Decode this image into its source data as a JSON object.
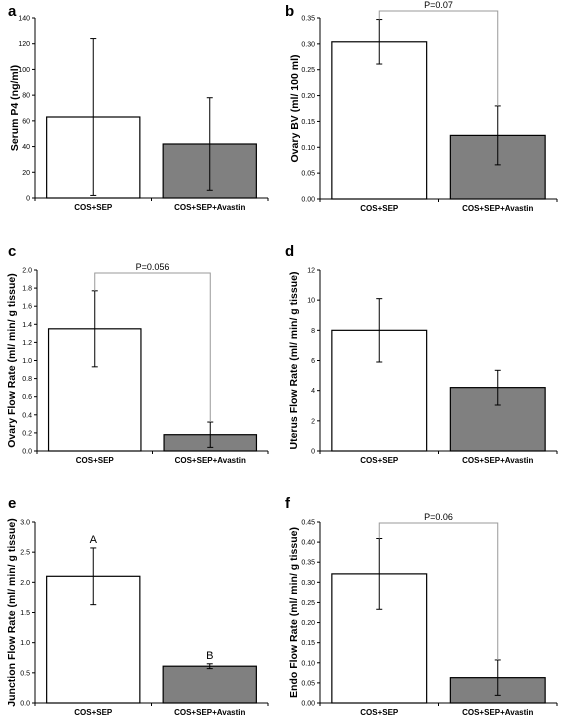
{
  "chart_data": [
    {
      "type": "bar",
      "panel": "a",
      "categories": [
        "COS+SEP",
        "COS+SEP+Avastin"
      ],
      "values": [
        63,
        42
      ],
      "errors": [
        61,
        36
      ],
      "ylabel": "Serum P4 (ng/ml)",
      "ylim": [
        0,
        140
      ],
      "yticks": [
        "0",
        "20",
        "40",
        "60",
        "80",
        "100",
        "120",
        "140"
      ],
      "pvalue": "",
      "bar_labels": [
        "",
        ""
      ]
    },
    {
      "type": "bar",
      "panel": "b",
      "categories": [
        "COS+SEP",
        "COS+SEP+Avastin"
      ],
      "values": [
        0.304,
        0.123
      ],
      "errors": [
        0.043,
        0.057
      ],
      "ylabel": "Ovary BV (ml/ 100 ml)",
      "ylim": [
        0,
        0.35
      ],
      "yticks": [
        "0.00",
        "0.05",
        "0.10",
        "0.15",
        "0.20",
        "0.25",
        "0.30",
        "0.35"
      ],
      "pvalue": "P=0.07",
      "bar_labels": [
        "",
        ""
      ]
    },
    {
      "type": "bar",
      "panel": "c",
      "categories": [
        "COS+SEP",
        "COS+SEP+Avastin"
      ],
      "values": [
        1.35,
        0.18
      ],
      "errors": [
        0.42,
        0.14
      ],
      "ylabel": "Ovary Flow Rate (ml/ min/ g tissue)",
      "ylim": [
        0,
        2.0
      ],
      "yticks": [
        "0.0",
        "0.2",
        "0.4",
        "0.6",
        "0.8",
        "1.0",
        "1.2",
        "1.4",
        "1.6",
        "1.8",
        "2.0"
      ],
      "pvalue": "P=0.056",
      "bar_labels": [
        "",
        ""
      ]
    },
    {
      "type": "bar",
      "panel": "d",
      "categories": [
        "COS+SEP",
        "COS+SEP+Avastin"
      ],
      "values": [
        8.0,
        4.2
      ],
      "errors": [
        2.1,
        1.15
      ],
      "ylabel": "Uterus Flow Rate (ml/ min/ g tissue)",
      "ylim": [
        0,
        12
      ],
      "yticks": [
        "0",
        "2",
        "4",
        "6",
        "8",
        "10",
        "12"
      ],
      "pvalue": "",
      "bar_labels": [
        "",
        ""
      ]
    },
    {
      "type": "bar",
      "panel": "e",
      "categories": [
        "COS+SEP",
        "COS+SEP+Avastin"
      ],
      "values": [
        2.1,
        0.61
      ],
      "errors": [
        0.47,
        0.04
      ],
      "ylabel": "Junction Flow Rate (ml/ min/ g tissue)",
      "ylim": [
        0,
        3.0
      ],
      "yticks": [
        "0.0",
        "0.5",
        "1.0",
        "1.5",
        "2.0",
        "2.5",
        "3.0"
      ],
      "pvalue": "",
      "bar_labels": [
        "A",
        "B"
      ]
    },
    {
      "type": "bar",
      "panel": "f",
      "categories": [
        "COS+SEP",
        "COS+SEP+Avastin"
      ],
      "values": [
        0.321,
        0.063
      ],
      "errors": [
        0.088,
        0.044
      ],
      "ylabel": "Endo Flow Rate (ml/ min/ g tissue)",
      "ylim": [
        0,
        0.45
      ],
      "yticks": [
        "0.00",
        "0.05",
        "0.10",
        "0.15",
        "0.20",
        "0.25",
        "0.30",
        "0.35",
        "0.40",
        "0.45"
      ],
      "pvalue": "P=0.06",
      "bar_labels": [
        "",
        ""
      ]
    }
  ],
  "colors": {
    "bar1": "#ffffff",
    "bar2": "#808080",
    "bracket": "#999999",
    "axis": "#000000"
  }
}
